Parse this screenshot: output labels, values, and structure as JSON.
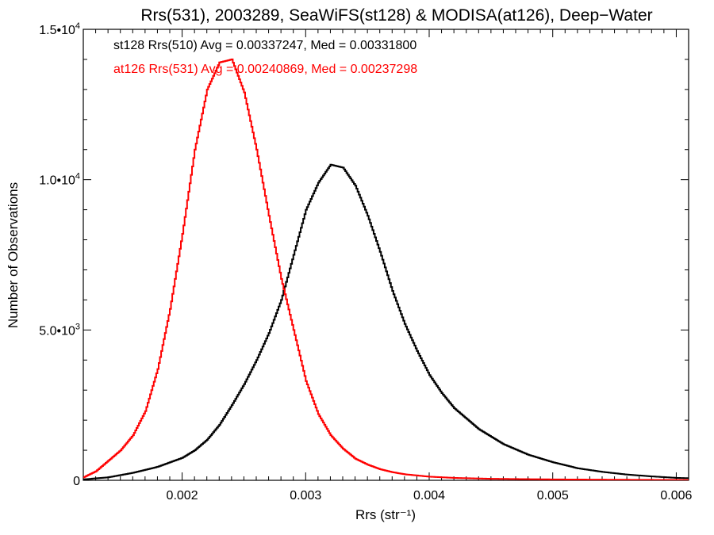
{
  "chart_data": {
    "type": "line",
    "title": "Rrs(531), 2003289, SeaWiFS(st128) & MODISA(at126), Deep−Water",
    "xlabel": "Rrs (str⁻¹)",
    "ylabel": "Number of Observations",
    "xlim": [
      0.0012,
      0.0061
    ],
    "ylim": [
      0,
      15000
    ],
    "x_ticks": [
      {
        "value": 0.002,
        "label": "0.002"
      },
      {
        "value": 0.003,
        "label": "0.003"
      },
      {
        "value": 0.004,
        "label": "0.004"
      },
      {
        "value": 0.005,
        "label": "0.005"
      },
      {
        "value": 0.006,
        "label": "0.006"
      }
    ],
    "y_ticks": [
      {
        "value": 0,
        "label": "0",
        "exp": ""
      },
      {
        "value": 5000,
        "label": "5.0•10",
        "exp": "3"
      },
      {
        "value": 10000,
        "label": "1.0•10",
        "exp": "4"
      },
      {
        "value": 15000,
        "label": "1.5•10",
        "exp": "4"
      }
    ],
    "legend": [
      {
        "text": "st128 Rrs(510) Avg = 0.00337247, Med = 0.00331800",
        "color": "#000000"
      },
      {
        "text": "at126 Rrs(531) Avg = 0.00240869, Med = 0.00237298",
        "color": "#ff0000"
      }
    ],
    "series": [
      {
        "color": "#000000",
        "x": [
          0.0012,
          0.0014,
          0.0016,
          0.0018,
          0.002,
          0.0021,
          0.0022,
          0.0023,
          0.0024,
          0.0025,
          0.0026,
          0.0027,
          0.0028,
          0.0029,
          0.003,
          0.0031,
          0.0032,
          0.0033,
          0.0034,
          0.0035,
          0.0036,
          0.0037,
          0.0038,
          0.0039,
          0.004,
          0.0041,
          0.0042,
          0.0043,
          0.0044,
          0.0046,
          0.0048,
          0.005,
          0.0052,
          0.0054,
          0.0056,
          0.0058,
          0.006,
          0.0061
        ],
        "values": [
          30,
          100,
          250,
          450,
          750,
          1000,
          1350,
          1850,
          2500,
          3200,
          4000,
          4900,
          6000,
          7500,
          9000,
          9900,
          10500,
          10400,
          9800,
          8800,
          7600,
          6300,
          5200,
          4300,
          3500,
          2900,
          2400,
          2050,
          1700,
          1200,
          850,
          600,
          400,
          280,
          190,
          130,
          80,
          70
        ]
      },
      {
        "color": "#ff0000",
        "x": [
          0.0012,
          0.0013,
          0.0014,
          0.0015,
          0.0016,
          0.0017,
          0.0018,
          0.0019,
          0.002,
          0.0021,
          0.0022,
          0.0023,
          0.0024,
          0.0025,
          0.0026,
          0.0027,
          0.0028,
          0.0029,
          0.003,
          0.0031,
          0.0032,
          0.0033,
          0.0034,
          0.0035,
          0.0036,
          0.0037,
          0.0038,
          0.004,
          0.0042,
          0.0045,
          0.005,
          0.0055,
          0.0061
        ],
        "values": [
          100,
          300,
          650,
          1000,
          1500,
          2300,
          3700,
          5700,
          8200,
          11000,
          13000,
          13900,
          14000,
          12900,
          11000,
          8800,
          6700,
          5000,
          3300,
          2200,
          1500,
          1050,
          720,
          520,
          370,
          270,
          200,
          120,
          80,
          50,
          30,
          20,
          10
        ]
      }
    ]
  }
}
